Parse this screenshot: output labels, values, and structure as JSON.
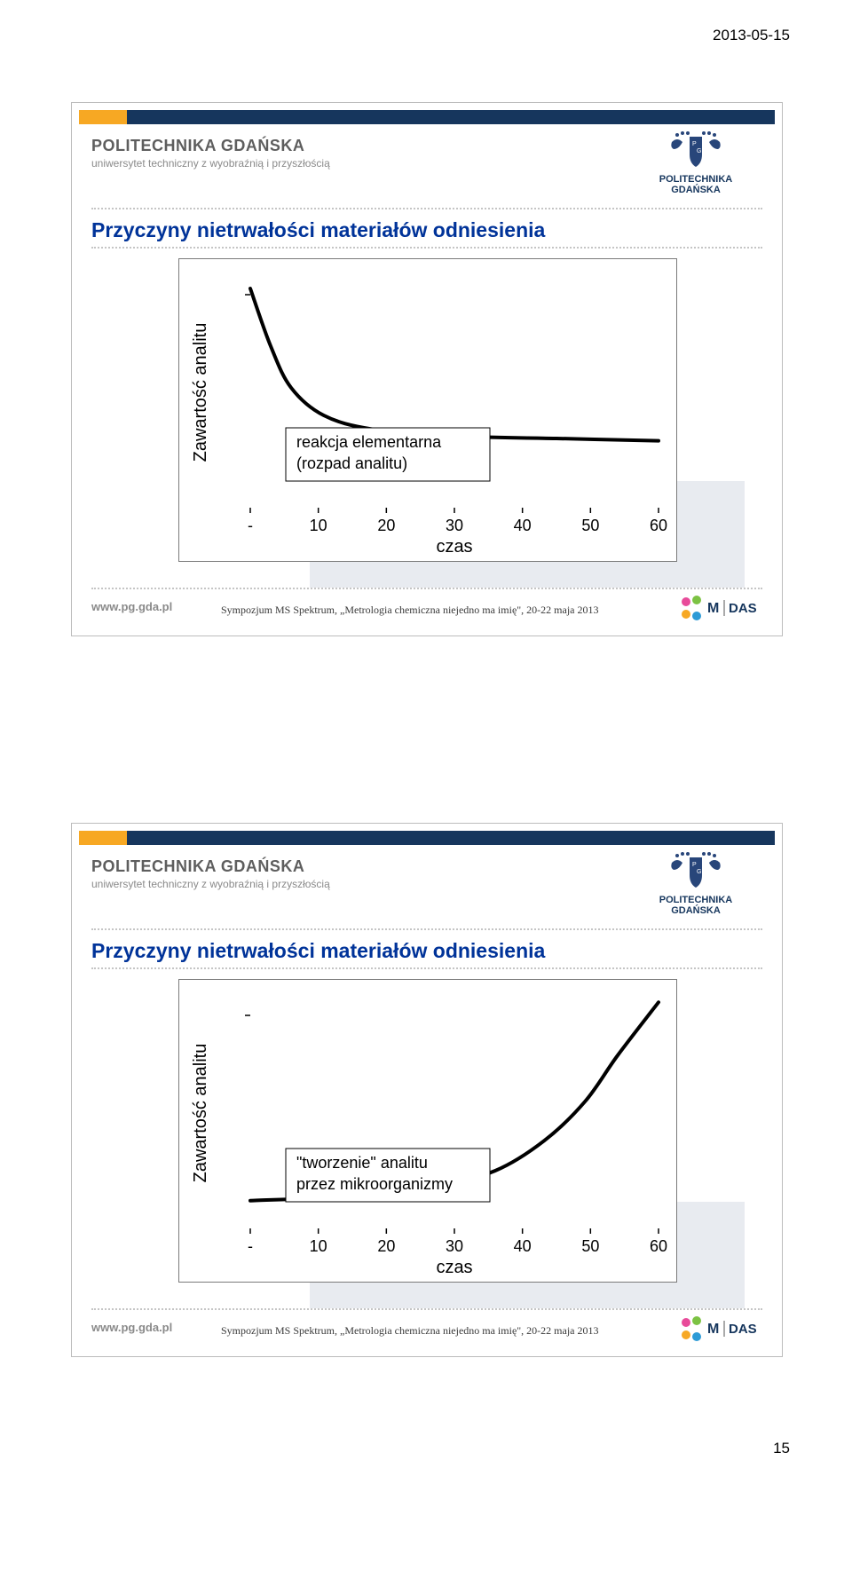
{
  "meta": {
    "date": "2013-05-15",
    "page_number": "15"
  },
  "institution": {
    "name": "POLITECHNIKA GDAŃSKA",
    "tagline": "uniwersytet techniczny z wyobraźnią i przyszłością",
    "logo_label_line1": "POLITECHNIKA",
    "logo_label_line2": "GDAŃSKA",
    "url": "www.pg.gda.pl"
  },
  "footer_caption": "Sympozjum  MS Spektrum, „Metrologia chemiczna niejedno ma imię\", 20-22 maja 2013",
  "slides": [
    {
      "title": "Przyczyny nietrwałości materiałów odniesienia",
      "chart": {
        "type": "line",
        "ylabel": "Zawartość analitu",
        "xlabel": "czas",
        "x_ticks": [
          "-",
          "10",
          "20",
          "30",
          "40",
          "50",
          "60"
        ],
        "annotation": "reakcja elementarna\n(rozpad analitu)",
        "curve": {
          "shape": "decay",
          "points_norm": [
            [
              0.0,
              0.95
            ],
            [
              0.05,
              0.7
            ],
            [
              0.1,
              0.52
            ],
            [
              0.18,
              0.4
            ],
            [
              0.3,
              0.34
            ],
            [
              0.5,
              0.31
            ],
            [
              0.75,
              0.3
            ],
            [
              1.0,
              0.29
            ]
          ],
          "stroke": "#000000",
          "stroke_width": 4
        },
        "axis_color": "#000000",
        "tick_fontsize": 18,
        "label_fontsize": 20,
        "annotation_fontsize": 18,
        "annotation_box": true
      }
    },
    {
      "title": "Przyczyny nietrwałości materiałów odniesienia",
      "chart": {
        "type": "line",
        "ylabel": "Zawartość analitu",
        "xlabel": "czas",
        "x_ticks": [
          "-",
          "10",
          "20",
          "30",
          "40",
          "50",
          "60"
        ],
        "annotation": "\"tworzenie\" analitu\nprzez mikroorganizmy",
        "curve": {
          "shape": "growth",
          "points_norm": [
            [
              0.0,
              0.12
            ],
            [
              0.25,
              0.14
            ],
            [
              0.45,
              0.18
            ],
            [
              0.6,
              0.25
            ],
            [
              0.72,
              0.38
            ],
            [
              0.82,
              0.55
            ],
            [
              0.9,
              0.75
            ],
            [
              1.0,
              0.98
            ]
          ],
          "stroke": "#000000",
          "stroke_width": 4
        },
        "axis_color": "#000000",
        "tick_fontsize": 18,
        "label_fontsize": 20,
        "annotation_fontsize": 18,
        "annotation_box": true
      }
    }
  ],
  "colors": {
    "navy": "#16365d",
    "orange": "#f7a823",
    "title_blue": "#003399",
    "grey_text": "#8a8a8a",
    "logo_shield": "#28467a"
  }
}
